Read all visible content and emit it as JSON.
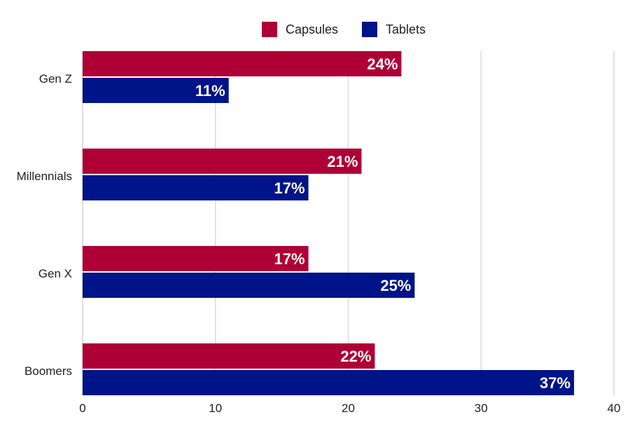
{
  "chart_data": {
    "type": "bar",
    "orientation": "horizontal",
    "categories": [
      "Gen Z",
      "Millennials",
      "Gen X",
      "Boomers"
    ],
    "series": [
      {
        "name": "Capsules",
        "color": "#AE0037",
        "values": [
          24,
          21,
          17,
          22
        ],
        "labels": [
          "24%",
          "21%",
          "17%",
          "22%"
        ]
      },
      {
        "name": "Tablets",
        "color": "#001489",
        "values": [
          11,
          17,
          25,
          37
        ],
        "labels": [
          "11%",
          "17%",
          "25%",
          "37%"
        ]
      }
    ],
    "xlim": [
      0,
      40
    ],
    "xticks": [
      0,
      10,
      20,
      30,
      40
    ],
    "xtick_labels": [
      "0",
      "10",
      "20",
      "30",
      "40"
    ],
    "grid": "vertical",
    "legend": "top-center"
  }
}
